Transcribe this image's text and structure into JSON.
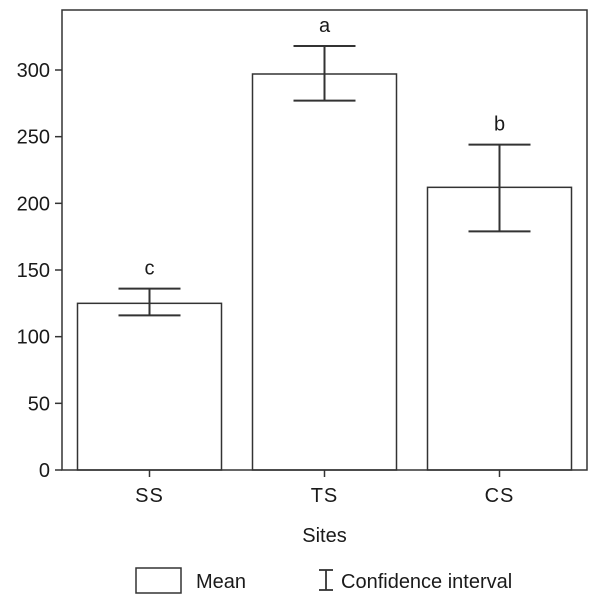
{
  "chart_data": {
    "type": "bar",
    "categories": [
      "SS",
      "TS",
      "CS"
    ],
    "values": [
      125,
      297,
      212
    ],
    "ci_upper": [
      136,
      318,
      244
    ],
    "ci_lower": [
      116,
      277,
      179
    ],
    "significance": [
      "c",
      "a",
      "b"
    ],
    "title": "",
    "xlabel": "Sites",
    "ylabel": "",
    "ylim": [
      0,
      345
    ],
    "yticks": [
      0,
      50,
      100,
      150,
      200,
      250,
      300
    ],
    "grid": false,
    "legend": {
      "placement": "bottom-center",
      "mean_label": "Mean",
      "ci_label": "Confidence interval"
    },
    "colors": {
      "bar_fill": "#ffffff",
      "stroke": "#333333"
    }
  }
}
